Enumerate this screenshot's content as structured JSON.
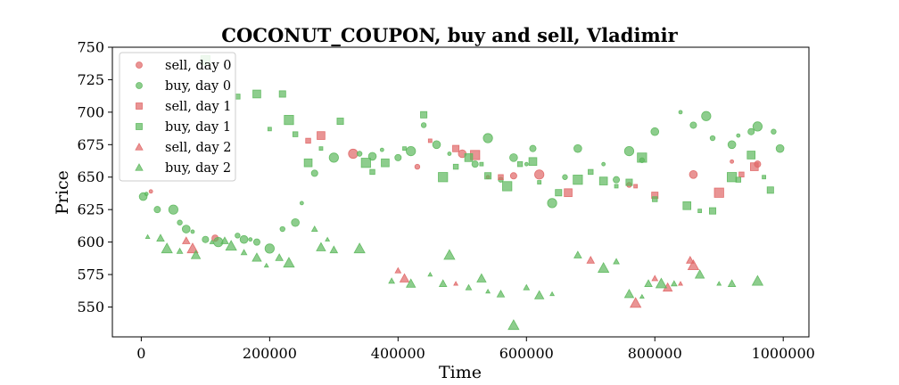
{
  "chart_data": {
    "type": "scatter",
    "title": "COCONUT_COUPON, buy and sell, Vladimir",
    "xlabel": "Time",
    "ylabel": "Price",
    "xlim": [
      -45000,
      1040000
    ],
    "ylim": [
      527,
      750
    ],
    "xticks": [
      0,
      200000,
      400000,
      600000,
      800000,
      1000000
    ],
    "xtick_labels": [
      "0",
      "200000",
      "400000",
      "600000",
      "800000",
      "1000000"
    ],
    "yticks": [
      550,
      575,
      600,
      625,
      650,
      675,
      700,
      725,
      750
    ],
    "ytick_labels": [
      "550",
      "575",
      "600",
      "625",
      "650",
      "675",
      "700",
      "725",
      "750"
    ],
    "grid": false,
    "legend_position": "top-left",
    "colors": {
      "sell": "#e06666",
      "buy": "#5cb85c"
    },
    "series": [
      {
        "name": "sell, day 0",
        "marker": "circle",
        "color": "#e06666",
        "points": [
          [
            15000,
            639
          ],
          [
            115000,
            603
          ],
          [
            330000,
            668
          ],
          [
            430000,
            658
          ],
          [
            500000,
            668
          ],
          [
            540000,
            650
          ],
          [
            580000,
            651
          ],
          [
            620000,
            652
          ],
          [
            760000,
            644
          ],
          [
            860000,
            652
          ],
          [
            920000,
            662
          ],
          [
            960000,
            660
          ]
        ]
      },
      {
        "name": "buy, day 0",
        "marker": "circle",
        "color": "#5cb85c",
        "points": [
          [
            3000,
            635
          ],
          [
            8000,
            637
          ],
          [
            25000,
            625
          ],
          [
            50000,
            625
          ],
          [
            60000,
            615
          ],
          [
            70000,
            610
          ],
          [
            80000,
            608
          ],
          [
            100000,
            602
          ],
          [
            120000,
            600
          ],
          [
            150000,
            605
          ],
          [
            160000,
            602
          ],
          [
            170000,
            602
          ],
          [
            180000,
            600
          ],
          [
            200000,
            595
          ],
          [
            220000,
            610
          ],
          [
            240000,
            615
          ],
          [
            250000,
            630
          ],
          [
            270000,
            653
          ],
          [
            300000,
            665
          ],
          [
            340000,
            668
          ],
          [
            360000,
            666
          ],
          [
            375000,
            671
          ],
          [
            400000,
            665
          ],
          [
            420000,
            670
          ],
          [
            440000,
            690
          ],
          [
            460000,
            675
          ],
          [
            480000,
            668
          ],
          [
            520000,
            660
          ],
          [
            540000,
            680
          ],
          [
            560000,
            648
          ],
          [
            580000,
            665
          ],
          [
            600000,
            660
          ],
          [
            610000,
            672
          ],
          [
            640000,
            630
          ],
          [
            660000,
            650
          ],
          [
            680000,
            672
          ],
          [
            720000,
            660
          ],
          [
            740000,
            648
          ],
          [
            760000,
            670
          ],
          [
            780000,
            663
          ],
          [
            800000,
            685
          ],
          [
            840000,
            700
          ],
          [
            860000,
            690
          ],
          [
            880000,
            697
          ],
          [
            890000,
            680
          ],
          [
            920000,
            675
          ],
          [
            930000,
            682
          ],
          [
            950000,
            685
          ],
          [
            960000,
            689
          ],
          [
            985000,
            685
          ],
          [
            995000,
            672
          ]
        ]
      },
      {
        "name": "sell, day 1",
        "marker": "square",
        "color": "#e06666",
        "points": [
          [
            260000,
            678
          ],
          [
            280000,
            682
          ],
          [
            450000,
            678
          ],
          [
            490000,
            672
          ],
          [
            520000,
            667
          ],
          [
            560000,
            650
          ],
          [
            665000,
            638
          ],
          [
            770000,
            643
          ],
          [
            800000,
            636
          ],
          [
            900000,
            638
          ],
          [
            935000,
            652
          ],
          [
            955000,
            658
          ]
        ]
      },
      {
        "name": "buy, day 1",
        "marker": "square",
        "color": "#5cb85c",
        "points": [
          [
            100000,
            740
          ],
          [
            150000,
            712
          ],
          [
            180000,
            714
          ],
          [
            200000,
            687
          ],
          [
            220000,
            714
          ],
          [
            230000,
            694
          ],
          [
            240000,
            683
          ],
          [
            260000,
            661
          ],
          [
            280000,
            672
          ],
          [
            310000,
            693
          ],
          [
            350000,
            661
          ],
          [
            360000,
            654
          ],
          [
            380000,
            661
          ],
          [
            410000,
            672
          ],
          [
            440000,
            698
          ],
          [
            470000,
            650
          ],
          [
            490000,
            658
          ],
          [
            510000,
            665
          ],
          [
            530000,
            660
          ],
          [
            540000,
            651
          ],
          [
            570000,
            643
          ],
          [
            590000,
            660
          ],
          [
            610000,
            662
          ],
          [
            620000,
            646
          ],
          [
            650000,
            638
          ],
          [
            680000,
            648
          ],
          [
            700000,
            654
          ],
          [
            720000,
            647
          ],
          [
            740000,
            643
          ],
          [
            760000,
            646
          ],
          [
            780000,
            665
          ],
          [
            800000,
            633
          ],
          [
            850000,
            628
          ],
          [
            870000,
            624
          ],
          [
            890000,
            624
          ],
          [
            920000,
            650
          ],
          [
            930000,
            648
          ],
          [
            950000,
            667
          ],
          [
            970000,
            650
          ],
          [
            980000,
            640
          ]
        ]
      },
      {
        "name": "sell, day 2",
        "marker": "triangle",
        "color": "#e06666",
        "points": [
          [
            70000,
            601
          ],
          [
            80000,
            595
          ],
          [
            400000,
            578
          ],
          [
            410000,
            572
          ],
          [
            490000,
            568
          ],
          [
            700000,
            586
          ],
          [
            770000,
            553
          ],
          [
            800000,
            572
          ],
          [
            820000,
            565
          ],
          [
            840000,
            568
          ],
          [
            855000,
            586
          ],
          [
            860000,
            582
          ]
        ]
      },
      {
        "name": "buy, day 2",
        "marker": "triangle",
        "color": "#5cb85c",
        "points": [
          [
            10000,
            604
          ],
          [
            30000,
            603
          ],
          [
            40000,
            595
          ],
          [
            60000,
            593
          ],
          [
            85000,
            590
          ],
          [
            110000,
            600
          ],
          [
            130000,
            601
          ],
          [
            140000,
            597
          ],
          [
            160000,
            592
          ],
          [
            180000,
            588
          ],
          [
            195000,
            582
          ],
          [
            215000,
            588
          ],
          [
            230000,
            584
          ],
          [
            270000,
            610
          ],
          [
            280000,
            596
          ],
          [
            290000,
            602
          ],
          [
            300000,
            594
          ],
          [
            340000,
            595
          ],
          [
            390000,
            570
          ],
          [
            420000,
            568
          ],
          [
            450000,
            575
          ],
          [
            470000,
            568
          ],
          [
            480000,
            590
          ],
          [
            510000,
            565
          ],
          [
            530000,
            572
          ],
          [
            540000,
            562
          ],
          [
            560000,
            560
          ],
          [
            580000,
            536
          ],
          [
            600000,
            565
          ],
          [
            620000,
            559
          ],
          [
            640000,
            560
          ],
          [
            680000,
            590
          ],
          [
            720000,
            580
          ],
          [
            740000,
            585
          ],
          [
            760000,
            560
          ],
          [
            780000,
            558
          ],
          [
            790000,
            568
          ],
          [
            810000,
            568
          ],
          [
            830000,
            568
          ],
          [
            870000,
            575
          ],
          [
            900000,
            568
          ],
          [
            920000,
            568
          ],
          [
            960000,
            570
          ]
        ]
      }
    ]
  }
}
